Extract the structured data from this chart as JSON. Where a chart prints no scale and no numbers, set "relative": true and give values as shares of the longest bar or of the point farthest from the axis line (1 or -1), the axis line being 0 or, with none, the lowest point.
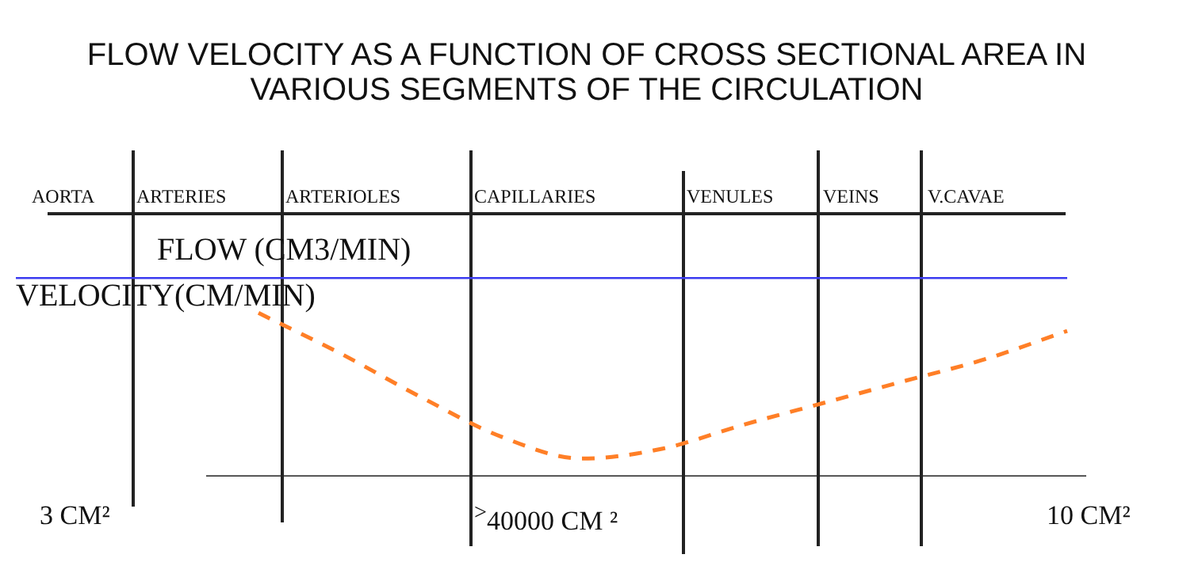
{
  "chart_data": {
    "type": "line",
    "title": "FLOW VELOCITY AS A FUNCTION OF CROSS SECTIONAL AREA IN VARIOUS SEGMENTS OF THE CIRCULATION",
    "relative": true,
    "categories": [
      null,
      null,
      null,
      null,
      null,
      null,
      null,
      null,
      null,
      null,
      null,
      null,
      null,
      null
    ],
    "series": [
      {
        "name": "FLOW (CM3/MIN)",
        "color": "#3b3bf0",
        "values": [
          1,
          1,
          1,
          1,
          1,
          1,
          1,
          1,
          1,
          1,
          1,
          1,
          1,
          1
        ]
      },
      {
        "name": "VELOCITY(CM/MIN)",
        "color": "#ff7f27",
        "line_style": "dashed",
        "values": [
          null,
          null,
          null,
          0.82,
          0.62,
          0.4,
          0.2,
          0.09,
          0.14,
          0.26,
          0.37,
          0.48,
          0.59,
          0.73
        ]
      }
    ],
    "annotations": [
      "AORTA",
      "ARTERIES",
      "ARTERIOLES",
      "CAPILLARIES",
      "VENULES",
      "VEINS",
      "V.CAVAE",
      "3 CM²",
      "$^{>}$40000 CM ²",
      "10 CM²"
    ],
    "marker": "none"
  }
}
